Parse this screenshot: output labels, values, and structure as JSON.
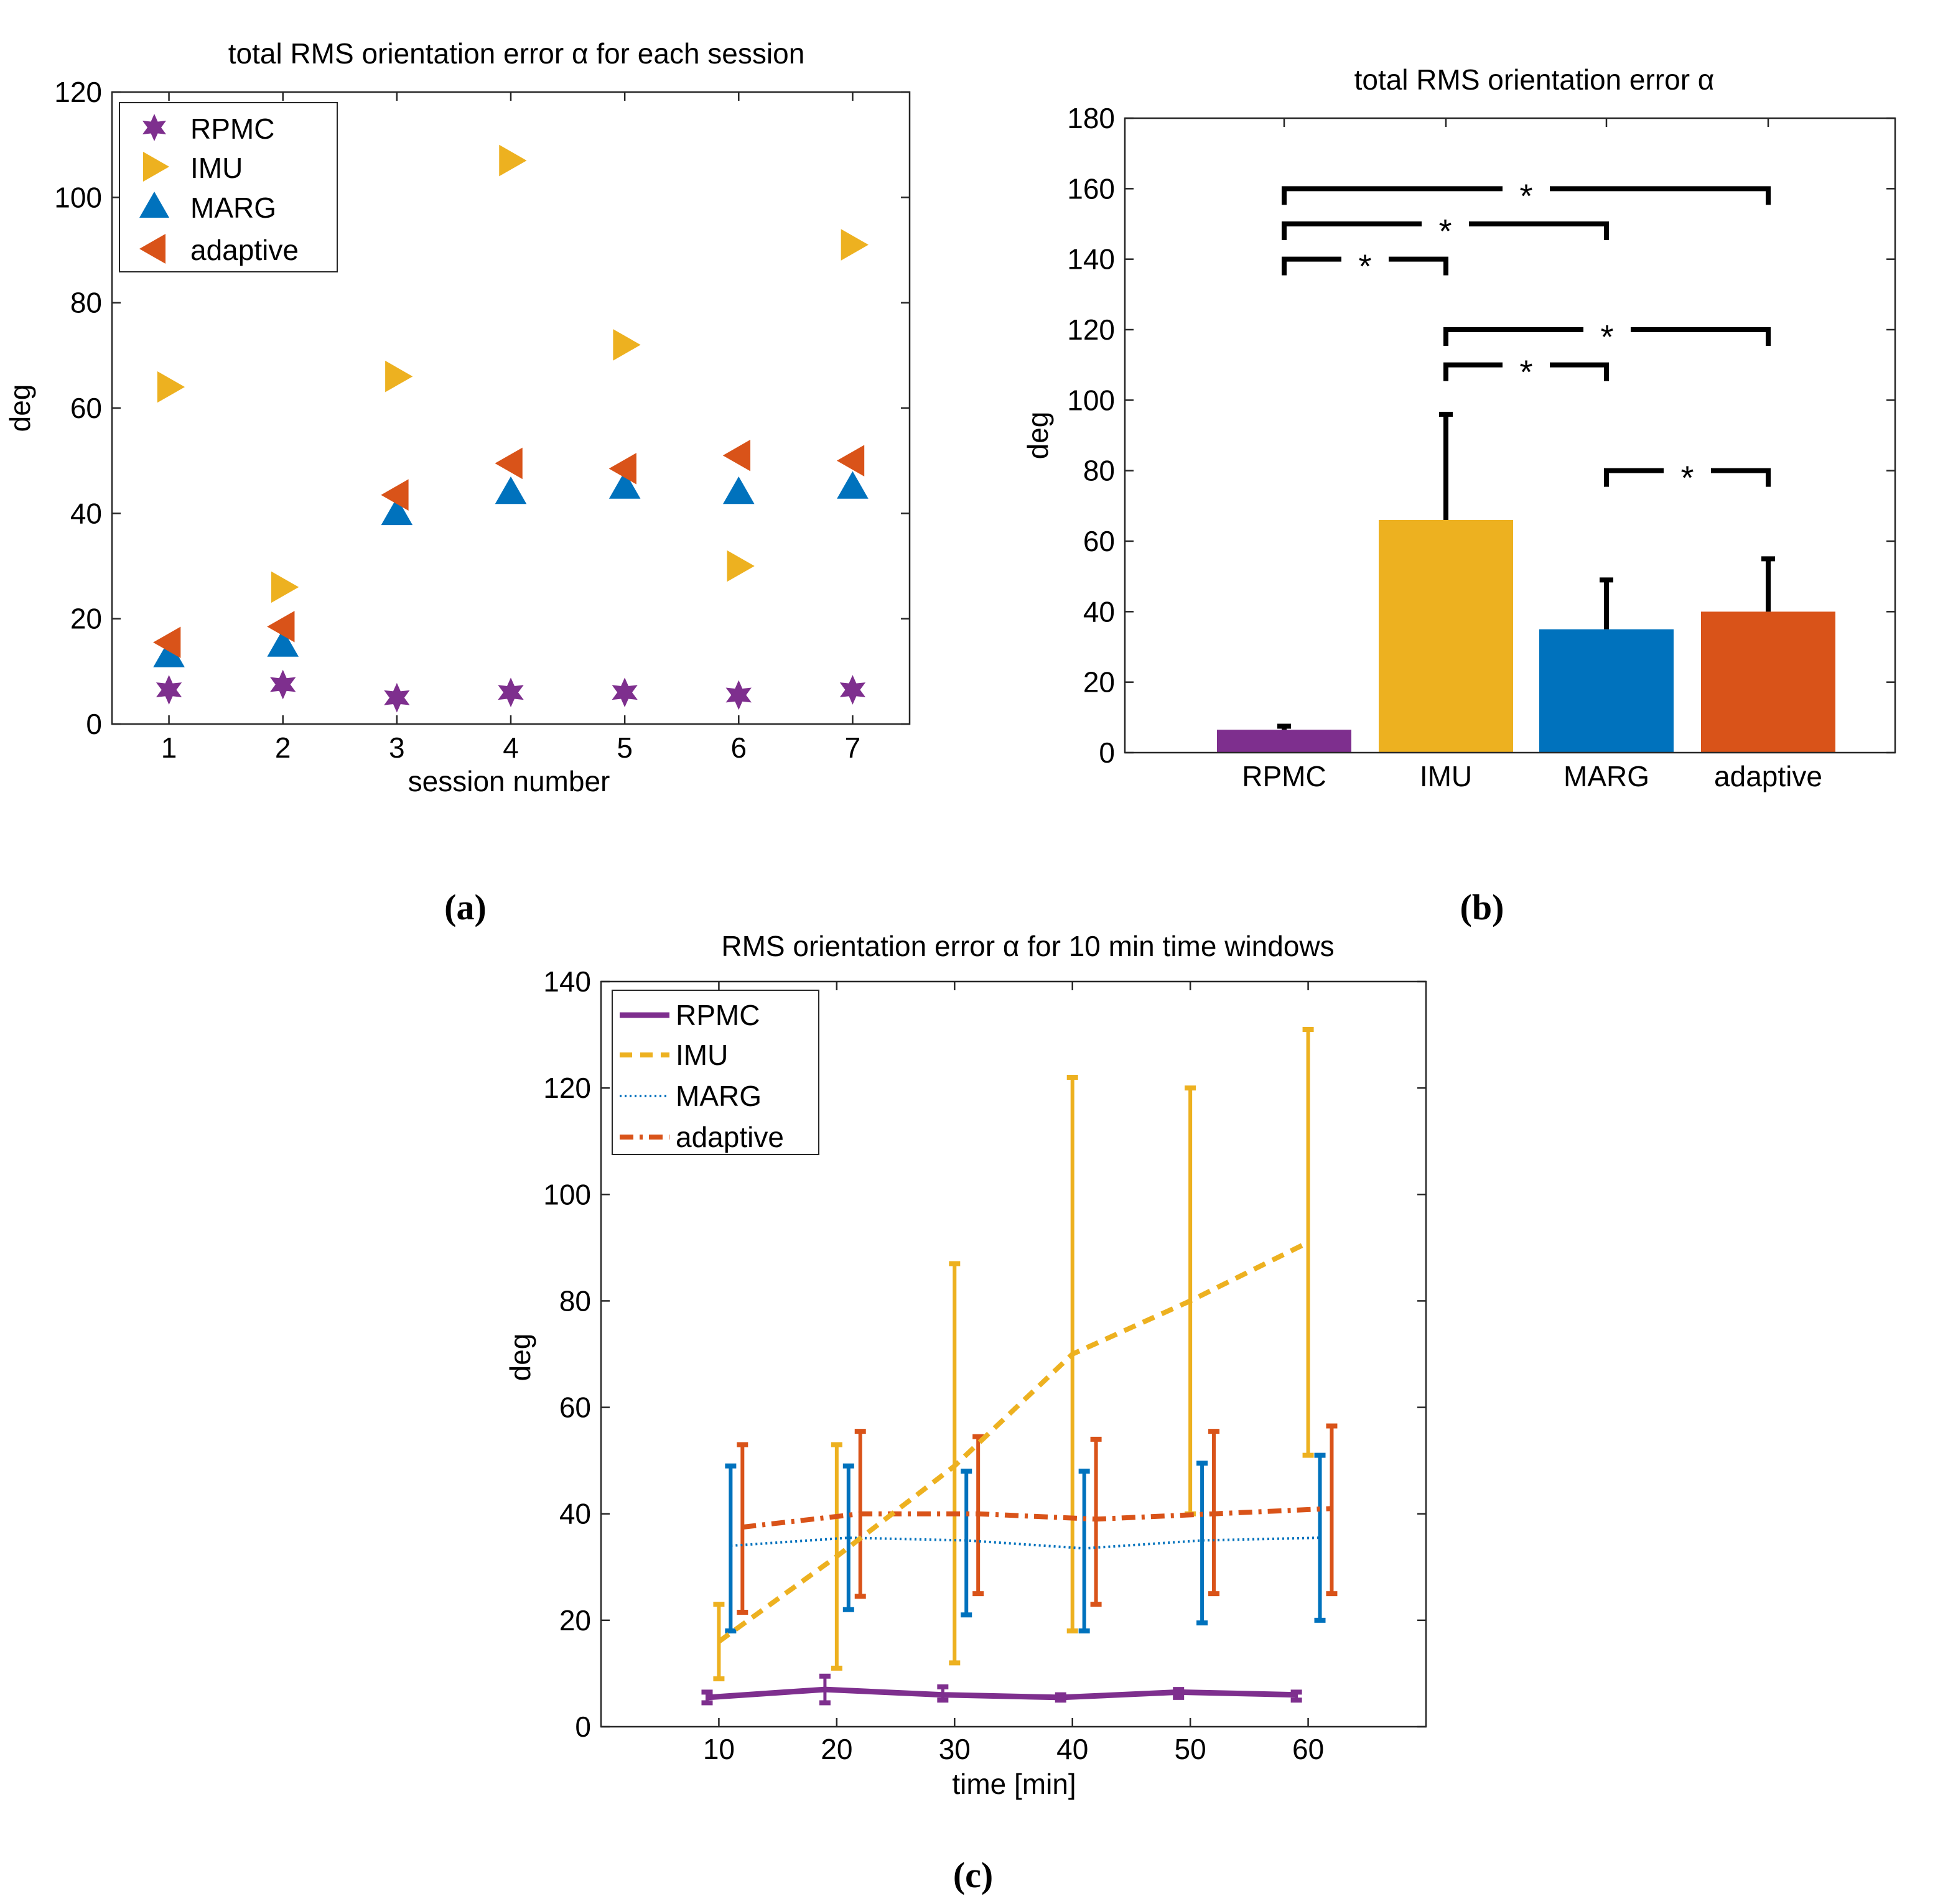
{
  "colors": {
    "RPMC": "#7E2F8E",
    "IMU": "#EDB120",
    "MARG": "#0072BD",
    "adaptive": "#D95319"
  },
  "panel_labels": [
    "(a)",
    "(b)",
    "(c)"
  ],
  "chart_data": [
    {
      "id": "a",
      "type": "scatter",
      "title": "total RMS orientation error α  for each session",
      "xlabel": "session number",
      "ylabel": "deg",
      "xlim": [
        0.5,
        7.5
      ],
      "ylim": [
        0,
        120
      ],
      "xticks": [
        1,
        2,
        3,
        4,
        5,
        6,
        7
      ],
      "yticks": [
        0,
        20,
        40,
        60,
        80,
        100,
        120
      ],
      "legend": [
        "RPMC",
        "IMU",
        "MARG",
        "adaptive"
      ],
      "legend_position": "top-left",
      "series": [
        {
          "name": "RPMC",
          "marker": "hexagram",
          "x": [
            1,
            2,
            3,
            4,
            5,
            6,
            7
          ],
          "y": [
            6.5,
            7.5,
            5,
            6,
            6,
            5.5,
            6.5
          ]
        },
        {
          "name": "IMU",
          "marker": "triangle-right",
          "x": [
            1,
            2,
            3,
            4,
            5,
            6,
            7
          ],
          "y": [
            64,
            26,
            66,
            107,
            72,
            30,
            91
          ]
        },
        {
          "name": "MARG",
          "marker": "triangle-up",
          "x": [
            1,
            2,
            3,
            4,
            5,
            6,
            7
          ],
          "y": [
            13,
            15,
            40,
            44,
            45,
            44,
            45
          ]
        },
        {
          "name": "adaptive",
          "marker": "triangle-left",
          "x": [
            1,
            2,
            3,
            4,
            5,
            6,
            7
          ],
          "y": [
            15.5,
            18.5,
            43.5,
            49.5,
            48.5,
            51,
            50
          ]
        }
      ]
    },
    {
      "id": "b",
      "type": "bar",
      "title": "total RMS orientation error α",
      "xlabel": "",
      "ylabel": "deg",
      "ylim": [
        0,
        180
      ],
      "yticks": [
        0,
        20,
        40,
        60,
        80,
        100,
        120,
        140,
        160,
        180
      ],
      "categories": [
        "RPMC",
        "IMU",
        "MARG",
        "adaptive"
      ],
      "values": [
        6.5,
        66,
        35,
        40
      ],
      "error_upper": [
        7.5,
        96,
        49,
        55
      ],
      "significance": [
        {
          "from": "RPMC",
          "to": "adaptive",
          "y": 160,
          "label": "*"
        },
        {
          "from": "RPMC",
          "to": "MARG",
          "y": 150,
          "label": "*"
        },
        {
          "from": "RPMC",
          "to": "IMU",
          "y": 140,
          "label": "*"
        },
        {
          "from": "IMU",
          "to": "adaptive",
          "y": 120,
          "label": "*"
        },
        {
          "from": "IMU",
          "to": "MARG",
          "y": 110,
          "label": "*"
        },
        {
          "from": "MARG",
          "to": "adaptive",
          "y": 80,
          "label": "*"
        }
      ]
    },
    {
      "id": "c",
      "type": "line",
      "title": "RMS orientation error α for 10 min time windows",
      "xlabel": "time [min]",
      "ylabel": "deg",
      "xlim": [
        0,
        70
      ],
      "ylim": [
        0,
        140
      ],
      "xticks": [
        10,
        20,
        30,
        40,
        50,
        60
      ],
      "yticks": [
        0,
        20,
        40,
        60,
        80,
        100,
        120,
        140
      ],
      "legend": [
        "RPMC",
        "IMU",
        "MARG",
        "adaptive"
      ],
      "legend_position": "top-left",
      "x": [
        10,
        20,
        30,
        40,
        50,
        60
      ],
      "series": [
        {
          "name": "RPMC",
          "style": "solid",
          "x_offset": -1,
          "values": [
            5.5,
            7,
            6,
            5.5,
            6.5,
            6
          ],
          "lower": [
            4.5,
            4.5,
            5,
            5,
            5.5,
            5
          ],
          "upper": [
            6.5,
            9.5,
            7.5,
            6,
            7,
            6.5
          ]
        },
        {
          "name": "IMU",
          "style": "dashed",
          "x_offset": 0,
          "values": [
            16,
            32,
            49,
            70,
            80,
            91
          ],
          "lower": [
            9,
            11,
            12,
            18,
            40,
            51
          ],
          "upper": [
            23,
            53,
            87,
            122,
            120,
            131
          ]
        },
        {
          "name": "MARG",
          "style": "dotted",
          "x_offset": 1,
          "values": [
            34,
            35.5,
            35,
            33.5,
            35,
            35.5
          ],
          "lower": [
            18,
            22,
            21,
            18,
            19.5,
            20
          ],
          "upper": [
            49,
            49,
            48,
            48,
            49.5,
            51
          ]
        },
        {
          "name": "adaptive",
          "style": "dashdot",
          "x_offset": 2,
          "values": [
            37.5,
            40,
            40,
            39,
            40,
            41
          ],
          "lower": [
            21.5,
            24.5,
            25,
            23,
            25,
            25
          ],
          "upper": [
            53,
            55.5,
            54.5,
            54,
            55.5,
            56.5
          ]
        }
      ]
    }
  ]
}
